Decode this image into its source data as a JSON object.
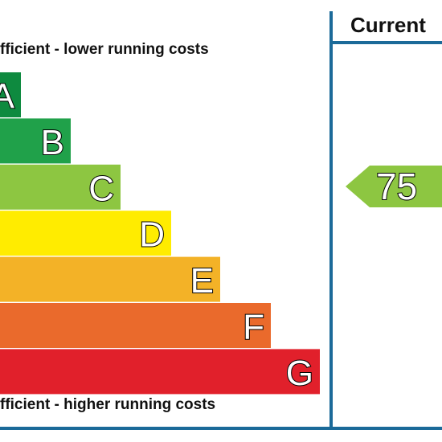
{
  "top_caption": "fficient - lower running costs",
  "bottom_caption": "fficient - higher running costs",
  "bands": [
    {
      "letter": "A",
      "color": "#0e8a3f"
    },
    {
      "letter": "B",
      "color": "#20a14a"
    },
    {
      "letter": "C",
      "color": "#8dc641"
    },
    {
      "letter": "D",
      "color": "#ffec00"
    },
    {
      "letter": "E",
      "color": "#f3b227"
    },
    {
      "letter": "F",
      "color": "#ea6a2c"
    },
    {
      "letter": "G",
      "color": "#e1202b"
    }
  ],
  "current": {
    "header": "Current",
    "rating": "75",
    "color": "#8dc641"
  }
}
